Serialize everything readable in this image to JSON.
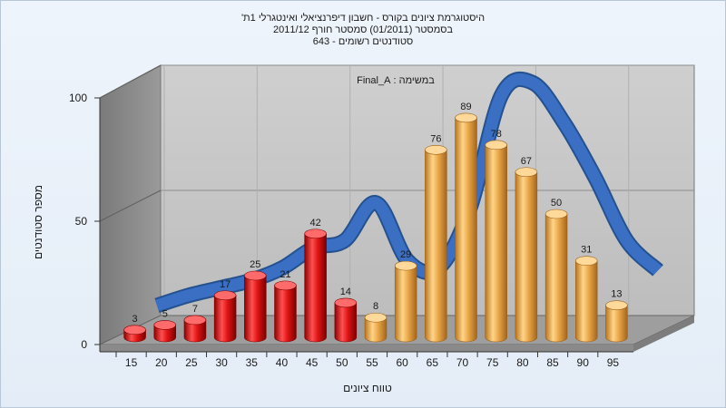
{
  "chart_data": {
    "type": "bar",
    "title_lines": [
      "היסטוגרמת ציונים בקורס - חשבון דיפרנציאלי ואינטגרלי 1ת'",
      "בסמסטר  (01/2011)  סמסטר חורף 2011/12",
      "סטודנטים רשומים - 643"
    ],
    "annotation": "במשימה : Final_A",
    "xlabel": "טווח ציונים",
    "ylabel": "מספר סטודנטים",
    "categories": [
      "15",
      "20",
      "25",
      "30",
      "35",
      "40",
      "45",
      "50",
      "55",
      "60",
      "65",
      "70",
      "75",
      "80",
      "85",
      "90",
      "95"
    ],
    "values": [
      3,
      5,
      7,
      17,
      25,
      21,
      42,
      14,
      8,
      29,
      76,
      89,
      78,
      67,
      50,
      31,
      13
    ],
    "data_labels": [
      "3",
      "5",
      "7",
      "17",
      "25",
      "21",
      "42",
      "14",
      "8",
      "29",
      "76",
      "89",
      "78",
      "67",
      "50",
      "31",
      "13"
    ],
    "bar_colors": [
      "#d91414",
      "#d91414",
      "#d91414",
      "#d91414",
      "#d91414",
      "#d91414",
      "#d91414",
      "#d91414",
      "#e8a63d",
      "#e8a63d",
      "#e8a63d",
      "#e8a63d",
      "#e8a63d",
      "#e8a63d",
      "#e8a63d",
      "#e8a63d",
      "#e8a63d"
    ],
    "curve_color": "#3a6fc4",
    "curve_values": [
      4,
      8,
      11,
      14,
      19,
      27,
      30,
      45,
      22,
      19,
      43,
      88,
      93,
      77,
      55,
      30,
      18
    ],
    "ylim": [
      0,
      100
    ],
    "yticks": [
      0,
      50,
      100
    ],
    "grid": true
  }
}
